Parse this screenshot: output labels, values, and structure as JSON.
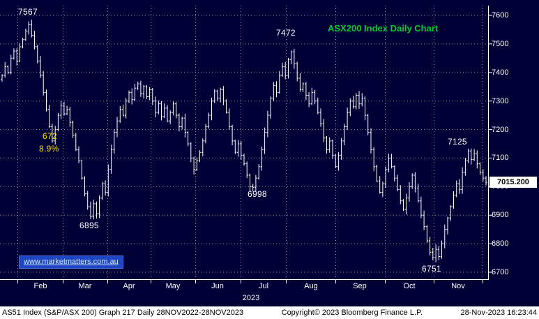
{
  "title": "ASX200 Index Daily Chart",
  "last_price": "7015.200",
  "watermark": "www.marketmatters.com.au",
  "annotations": {
    "feb_high": "7567",
    "drawdown_points": "672",
    "drawdown_pct": "8.9%",
    "mar_low": "6895",
    "jul_low": "6998",
    "jul_high": "7472",
    "nov_high": "7125",
    "oct_low": "6751"
  },
  "y_axis": {
    "ticks": [
      "7600",
      "7500",
      "7400",
      "7300",
      "7200",
      "7100",
      "7000",
      "6900",
      "6800",
      "6700"
    ]
  },
  "x_axis": {
    "months": [
      "Feb",
      "Mar",
      "Apr",
      "May",
      "Jun",
      "Jul",
      "Aug",
      "Sep",
      "Oct",
      "Nov"
    ],
    "year": "2023"
  },
  "status_bar": {
    "left": "AS51 Index (S&P/ASX 200) Graph 217  Daily 28NOV2022-28NOV2023",
    "center": "Copyright© 2023 Bloomberg Finance L.P.",
    "right": "28-Nov-2023 16:23:44"
  },
  "colors": {
    "background": "#000036",
    "bars": "#ffffff",
    "title_green": "#00cc33",
    "annotation_yellow": "#ffe400",
    "watermark_blue": "#1d46c4"
  },
  "chart_data": {
    "type": "ohlc-bar",
    "title": "ASX200 Index Daily Chart",
    "instrument": "AS51 Index (S&P/ASX 200)",
    "period": "Daily",
    "range": "28NOV2022-28NOV2023",
    "ylim": [
      6660,
      7640
    ],
    "y_ticks": [
      7600,
      7500,
      7400,
      7300,
      7200,
      7100,
      7000,
      6900,
      6800,
      6700
    ],
    "x_months": [
      "Feb",
      "Mar",
      "Apr",
      "May",
      "Jun",
      "Jul",
      "Aug",
      "Sep",
      "Oct",
      "Nov"
    ],
    "grid": true,
    "key_points": {
      "feb_high": 7567,
      "mar_low": 6895,
      "jul_low": 6998,
      "jul_high": 7472,
      "oct_low": 6751,
      "nov_high": 7125,
      "last_close": 7015.2,
      "feb_mar_drawdown_points": 672,
      "feb_mar_drawdown_pct": "8.9%"
    },
    "closes": [
      7390,
      7420,
      7400,
      7450,
      7475,
      7440,
      7490,
      7515,
      7545,
      7567,
      7530,
      7490,
      7440,
      7390,
      7330,
      7270,
      7210,
      7160,
      7200,
      7250,
      7285,
      7255,
      7270,
      7225,
      7180,
      7130,
      7090,
      7030,
      6975,
      6930,
      6895,
      6940,
      6905,
      6960,
      7010,
      6980,
      7060,
      7130,
      7190,
      7230,
      7270,
      7250,
      7300,
      7330,
      7305,
      7345,
      7360,
      7325,
      7350,
      7315,
      7340,
      7300,
      7260,
      7290,
      7245,
      7275,
      7230,
      7260,
      7290,
      7250,
      7210,
      7240,
      7190,
      7150,
      7100,
      7060,
      7090,
      7120,
      7160,
      7210,
      7250,
      7300,
      7335,
      7310,
      7340,
      7300,
      7260,
      7210,
      7160,
      7120,
      7150,
      7110,
      7080,
      7040,
      7000,
      6998,
      7030,
      7070,
      7130,
      7190,
      7250,
      7310,
      7355,
      7330,
      7390,
      7420,
      7390,
      7445,
      7472,
      7430,
      7380,
      7340,
      7360,
      7320,
      7290,
      7330,
      7300,
      7260,
      7220,
      7170,
      7130,
      7160,
      7110,
      7070,
      7110,
      7160,
      7210,
      7260,
      7300,
      7280,
      7320,
      7290,
      7310,
      7250,
      7190,
      7130,
      7070,
      7020,
      6980,
      7010,
      7060,
      7100,
      7070,
      7030,
      6990,
      6950,
      6920,
      6960,
      7000,
      7040,
      6995,
      6950,
      6900,
      6860,
      6810,
      6770,
      6751,
      6780,
      6755,
      6800,
      6850,
      6890,
      6930,
      6970,
      7010,
      6990,
      7050,
      7090,
      7125,
      7095,
      7115,
      7080,
      7050,
      7030,
      7015.2
    ]
  }
}
